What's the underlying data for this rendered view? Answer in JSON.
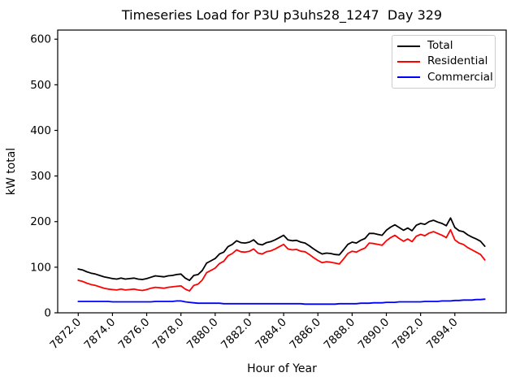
{
  "chart_data": {
    "type": "line",
    "title": "Timeseries Load for P3U p3uhs28_1247  Day 329",
    "xlabel": "Hour of Year",
    "ylabel": "kW total",
    "xlim": [
      7870.8,
      7897.0
    ],
    "ylim": [
      0,
      620
    ],
    "xticks": [
      "7872.0",
      "7874.0",
      "7876.0",
      "7878.0",
      "7880.0",
      "7882.0",
      "7884.0",
      "7886.0",
      "7888.0",
      "7890.0",
      "7892.0",
      "7894.0"
    ],
    "xtick_rotation_deg": 45,
    "yticks": [
      0,
      100,
      200,
      300,
      400,
      500,
      600
    ],
    "grid": false,
    "legend_position": "upper right",
    "x_start": 7872.0,
    "x_step": 0.25,
    "n_points": 96,
    "series": [
      {
        "name": "Total",
        "color": "#000000",
        "values": [
          96,
          94,
          90,
          87,
          85,
          82,
          79,
          77,
          75,
          74,
          76,
          74,
          75,
          76,
          74,
          73,
          75,
          78,
          81,
          80,
          79,
          81,
          82,
          84,
          85,
          76,
          71,
          82,
          84,
          93,
          109,
          114,
          119,
          129,
          133,
          145,
          150,
          158,
          154,
          153,
          155,
          160,
          151,
          149,
          154,
          156,
          160,
          165,
          170,
          160,
          158,
          159,
          155,
          153,
          147,
          140,
          134,
          129,
          131,
          130,
          128,
          127,
          138,
          150,
          155,
          153,
          159,
          163,
          174,
          174,
          172,
          170,
          181,
          188,
          193,
          187,
          181,
          186,
          180,
          192,
          196,
          194,
          200,
          203,
          199,
          196,
          191,
          208,
          187,
          180,
          178,
          171,
          166,
          162,
          157,
          146
        ]
      },
      {
        "name": "Residential",
        "color": "#ff0000",
        "values": [
          71,
          69,
          65,
          62,
          60,
          57,
          54,
          52,
          51,
          50,
          52,
          50,
          51,
          52,
          50,
          49,
          51,
          54,
          56,
          55,
          54,
          56,
          57,
          58,
          59,
          52,
          48,
          60,
          63,
          72,
          88,
          93,
          98,
          108,
          113,
          125,
          130,
          138,
          134,
          133,
          135,
          140,
          131,
          129,
          134,
          136,
          140,
          145,
          150,
          140,
          138,
          139,
          135,
          134,
          128,
          121,
          115,
          110,
          112,
          111,
          109,
          107,
          118,
          130,
          135,
          133,
          138,
          142,
          153,
          152,
          150,
          148,
          158,
          165,
          170,
          163,
          157,
          162,
          156,
          168,
          172,
          169,
          175,
          178,
          174,
          170,
          165,
          182,
          160,
          153,
          150,
          143,
          138,
          133,
          128,
          116
        ]
      },
      {
        "name": "Commercial",
        "color": "#0000ff",
        "values": [
          25,
          25,
          25,
          25,
          25,
          25,
          25,
          25,
          24,
          24,
          24,
          24,
          24,
          24,
          24,
          24,
          24,
          24,
          25,
          25,
          25,
          25,
          25,
          26,
          26,
          24,
          23,
          22,
          21,
          21,
          21,
          21,
          21,
          21,
          20,
          20,
          20,
          20,
          20,
          20,
          20,
          20,
          20,
          20,
          20,
          20,
          20,
          20,
          20,
          20,
          20,
          20,
          20,
          19,
          19,
          19,
          19,
          19,
          19,
          19,
          19,
          20,
          20,
          20,
          20,
          20,
          21,
          21,
          21,
          22,
          22,
          22,
          23,
          23,
          23,
          24,
          24,
          24,
          24,
          24,
          24,
          25,
          25,
          25,
          25,
          26,
          26,
          26,
          27,
          27,
          28,
          28,
          28,
          29,
          29,
          30
        ]
      }
    ]
  }
}
